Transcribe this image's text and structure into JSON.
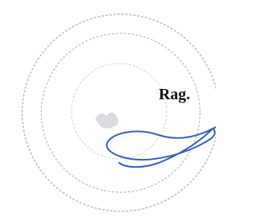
{
  "document": {
    "text": "Rag."
  }
}
